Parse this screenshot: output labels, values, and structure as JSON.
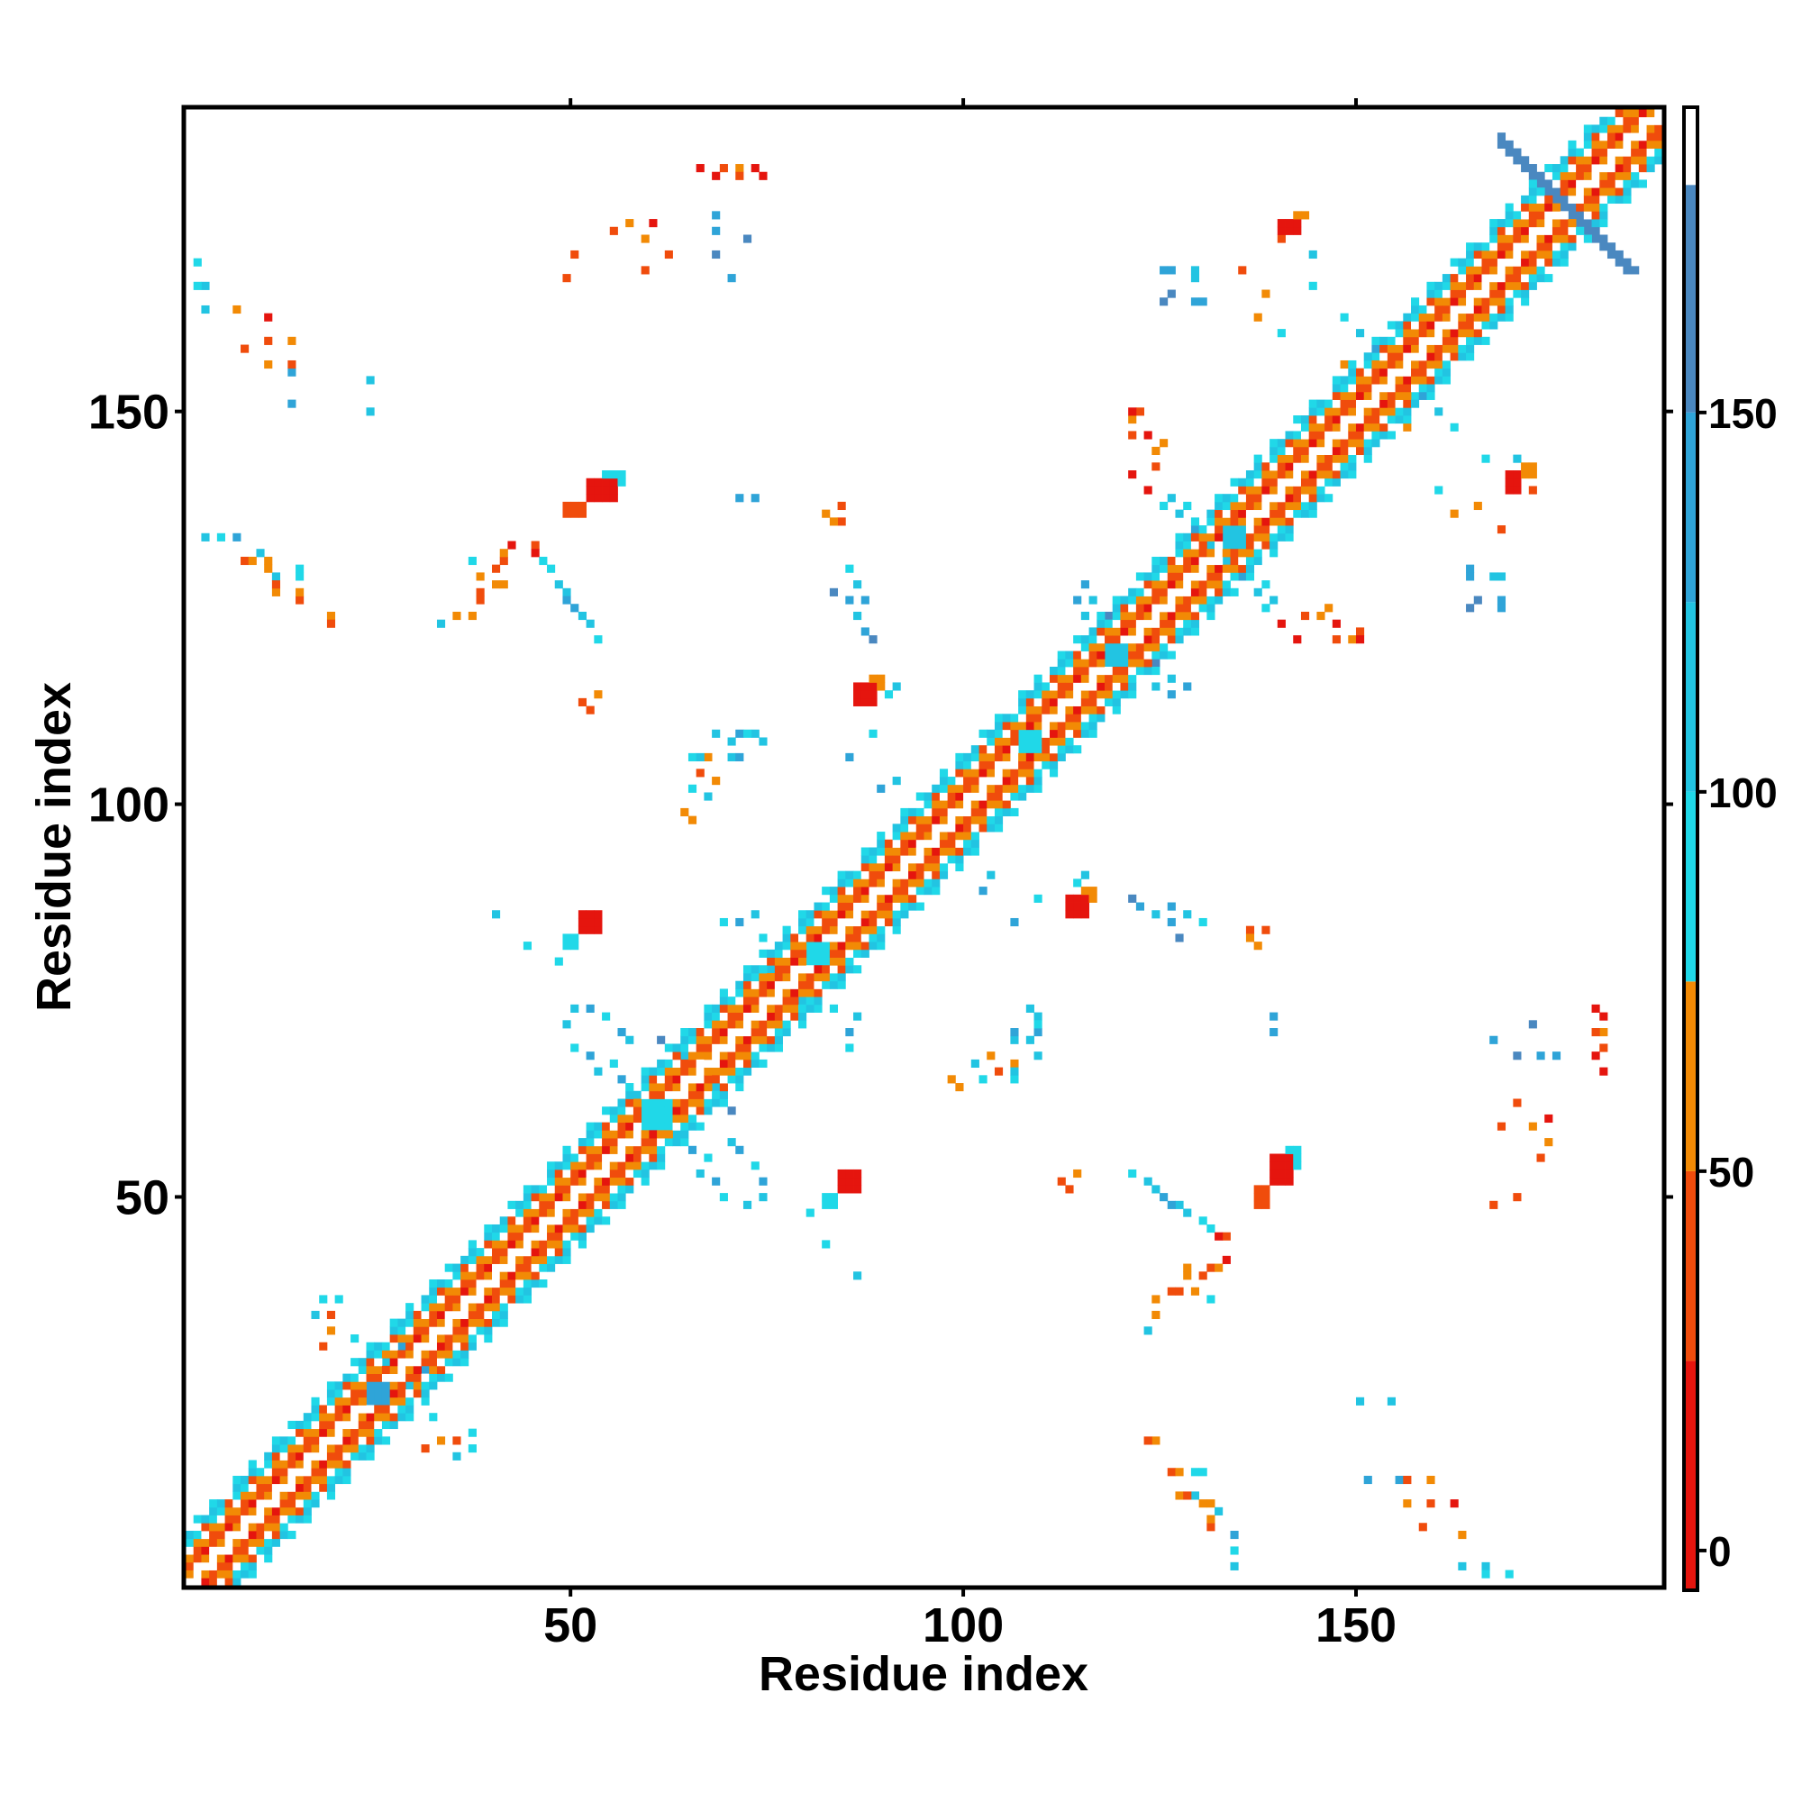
{
  "chart_data": {
    "type": "heatmap",
    "title": "",
    "xlabel": "Residue index",
    "ylabel": "Residue index",
    "xlim": [
      1,
      188
    ],
    "ylim": [
      1,
      188
    ],
    "x_ticks": [
      50,
      100,
      150
    ],
    "y_ticks": [
      50,
      100,
      150
    ],
    "colorbar": {
      "ticks": [
        0,
        50,
        100,
        150
      ],
      "range": [
        -5,
        190
      ],
      "bands": [
        {
          "from": -5,
          "to": 25,
          "color": "#e5150e"
        },
        {
          "from": 25,
          "to": 50,
          "color": "#f04c0c"
        },
        {
          "from": 50,
          "to": 75,
          "color": "#f28a05"
        },
        {
          "from": 75,
          "to": 100,
          "color": "#20d8e8"
        },
        {
          "from": 100,
          "to": 125,
          "color": "#22c4e2"
        },
        {
          "from": 125,
          "to": 150,
          "color": "#2fa4d8"
        },
        {
          "from": 150,
          "to": 180,
          "color": "#4a88c0"
        },
        {
          "from": 180,
          "to": 190,
          "color": "#ffffff"
        }
      ]
    },
    "diagonal_band": {
      "start": 1,
      "end": 188,
      "width": 7
    },
    "contact_patches": [
      {
        "x": 52,
        "y": 139,
        "dx": 4,
        "dy": 3,
        "color": "#e5150e"
      },
      {
        "x": 49,
        "y": 137,
        "dx": 3,
        "dy": 2,
        "color": "#f04c0c"
      },
      {
        "x": 54,
        "y": 141,
        "dx": 3,
        "dy": 2,
        "color": "#20d8e8"
      },
      {
        "x": 139,
        "y": 52,
        "dx": 3,
        "dy": 4,
        "color": "#e5150e"
      },
      {
        "x": 137,
        "y": 49,
        "dx": 2,
        "dy": 3,
        "color": "#f04c0c"
      },
      {
        "x": 141,
        "y": 54,
        "dx": 2,
        "dy": 3,
        "color": "#20d8e8"
      },
      {
        "x": 51,
        "y": 84,
        "dx": 3,
        "dy": 3,
        "color": "#e5150e"
      },
      {
        "x": 49,
        "y": 82,
        "dx": 2,
        "dy": 2,
        "color": "#20d8e8"
      },
      {
        "x": 84,
        "y": 51,
        "dx": 3,
        "dy": 3,
        "color": "#e5150e"
      },
      {
        "x": 82,
        "y": 49,
        "dx": 2,
        "dy": 2,
        "color": "#20d8e8"
      },
      {
        "x": 86,
        "y": 113,
        "dx": 3,
        "dy": 3,
        "color": "#e5150e"
      },
      {
        "x": 88,
        "y": 115,
        "dx": 2,
        "dy": 2,
        "color": "#f28a05"
      },
      {
        "x": 113,
        "y": 86,
        "dx": 3,
        "dy": 3,
        "color": "#e5150e"
      },
      {
        "x": 115,
        "y": 88,
        "dx": 2,
        "dy": 2,
        "color": "#f28a05"
      },
      {
        "x": 140,
        "y": 173,
        "dx": 3,
        "dy": 2,
        "color": "#e5150e"
      },
      {
        "x": 142,
        "y": 175,
        "dx": 2,
        "dy": 1,
        "color": "#f28a05"
      },
      {
        "x": 169,
        "y": 140,
        "dx": 2,
        "dy": 3,
        "color": "#e5150e"
      },
      {
        "x": 171,
        "y": 142,
        "dx": 2,
        "dy": 2,
        "color": "#f28a05"
      },
      {
        "x": 24,
        "y": 24,
        "dx": 3,
        "dy": 3,
        "color": "#2fa4d8"
      },
      {
        "x": 59,
        "y": 59,
        "dx": 4,
        "dy": 4,
        "color": "#20d8e8"
      },
      {
        "x": 80,
        "y": 80,
        "dx": 3,
        "dy": 3,
        "color": "#20d8e8"
      },
      {
        "x": 118,
        "y": 118,
        "dx": 3,
        "dy": 3,
        "color": "#22c4e2"
      },
      {
        "x": 133,
        "y": 133,
        "dx": 3,
        "dy": 3,
        "color": "#22c4e2"
      },
      {
        "x": 107,
        "y": 107,
        "dx": 3,
        "dy": 3,
        "color": "#20d8e8"
      }
    ],
    "cross_arms": [
      {
        "cx": 176,
        "cy": 176,
        "from": [
          168,
          184
        ],
        "to": [
          184,
          168
        ],
        "color": "#4a88c0"
      },
      {
        "cx": 176,
        "cy": 176,
        "from": [
          170,
          182
        ],
        "to": [
          182,
          170
        ],
        "color": "#22c4e2"
      }
    ],
    "scattered_contacts": [
      [
        66,
        181,
        "#e5150e"
      ],
      [
        69,
        181,
        "#f04c0c"
      ],
      [
        71,
        181,
        "#f28a05"
      ],
      [
        73,
        181,
        "#e5150e"
      ],
      [
        57,
        174,
        "#f28a05"
      ],
      [
        60,
        174,
        "#e5150e"
      ],
      [
        55,
        173,
        "#f04c0c"
      ],
      [
        68,
        175,
        "#2fa4d8"
      ],
      [
        72,
        172,
        "#4a88c0"
      ],
      [
        50,
        170,
        "#f04c0c"
      ],
      [
        2,
        169,
        "#20d8e8"
      ],
      [
        3,
        166,
        "#22c4e2"
      ],
      [
        7,
        163,
        "#f28a05"
      ],
      [
        11,
        162,
        "#e5150e"
      ],
      [
        11,
        159,
        "#f04c0c"
      ],
      [
        14,
        159,
        "#f28a05"
      ],
      [
        14,
        155,
        "#2fa4d8"
      ],
      [
        24,
        154,
        "#22c4e2"
      ],
      [
        3,
        134,
        "#22c4e2"
      ],
      [
        7,
        134,
        "#2fa4d8"
      ],
      [
        8,
        131,
        "#f04c0c"
      ],
      [
        11,
        131,
        "#f28a05"
      ],
      [
        12,
        129,
        "#22c4e2"
      ],
      [
        15,
        129,
        "#20d8e8"
      ],
      [
        12,
        127,
        "#f28a05"
      ],
      [
        15,
        126,
        "#f04c0c"
      ],
      [
        19,
        124,
        "#f28a05"
      ],
      [
        37,
        124,
        "#f28a05"
      ],
      [
        38,
        126,
        "#f04c0c"
      ],
      [
        40,
        128,
        "#f28a05"
      ],
      [
        41,
        131,
        "#f04c0c"
      ],
      [
        42,
        133,
        "#e5150e"
      ],
      [
        45,
        133,
        "#f04c0c"
      ],
      [
        47,
        130,
        "#20d8e8"
      ],
      [
        49,
        127,
        "#22c4e2"
      ],
      [
        50,
        125,
        "#2fa4d8"
      ],
      [
        52,
        123,
        "#22c4e2"
      ],
      [
        53,
        121,
        "#20d8e8"
      ],
      [
        51,
        113,
        "#f04c0c"
      ],
      [
        53,
        114,
        "#f28a05"
      ],
      [
        71,
        139,
        "#2fa4d8"
      ],
      [
        82,
        137,
        "#f28a05"
      ],
      [
        84,
        136,
        "#f04c0c"
      ],
      [
        83,
        127,
        "#4a88c0"
      ],
      [
        85,
        126,
        "#2fa4d8"
      ],
      [
        86,
        124,
        "#22c4e2"
      ],
      [
        87,
        122,
        "#2fa4d8"
      ],
      [
        88,
        121,
        "#4a88c0"
      ],
      [
        90,
        114,
        "#20d8e8"
      ],
      [
        91,
        115,
        "#22c4e2"
      ],
      [
        68,
        109,
        "#22c4e2"
      ],
      [
        71,
        109,
        "#2fa4d8"
      ],
      [
        73,
        109,
        "#22c4e2"
      ],
      [
        65,
        106,
        "#20d8e8"
      ],
      [
        67,
        106,
        "#f28a05"
      ],
      [
        70,
        106,
        "#22c4e2"
      ],
      [
        66,
        104,
        "#f04c0c"
      ],
      [
        65,
        102,
        "#20d8e8"
      ],
      [
        64,
        99,
        "#f28a05"
      ],
      [
        89,
        102,
        "#2fa4d8"
      ],
      [
        40,
        86,
        "#22c4e2"
      ],
      [
        48,
        80,
        "#20d8e8"
      ],
      [
        69,
        85,
        "#20d8e8"
      ],
      [
        73,
        86,
        "#22c4e2"
      ],
      [
        50,
        74,
        "#22c4e2"
      ],
      [
        52,
        74,
        "#2fa4d8"
      ],
      [
        54,
        73,
        "#20d8e8"
      ],
      [
        57,
        70,
        "#22c4e2"
      ],
      [
        56,
        71,
        "#2fa4d8"
      ],
      [
        61,
        70,
        "#4a88c0"
      ],
      [
        64,
        68,
        "#22c4e2"
      ],
      [
        66,
        68,
        "#f28a05"
      ],
      [
        79,
        75,
        "#22c4e2"
      ],
      [
        83,
        74,
        "#20d8e8"
      ],
      [
        85,
        71,
        "#2fa4d8"
      ],
      [
        63,
        58,
        "#22c4e2"
      ],
      [
        65,
        56,
        "#2fa4d8"
      ],
      [
        67,
        55,
        "#20d8e8"
      ],
      [
        66,
        53,
        "#22c4e2"
      ],
      [
        68,
        52,
        "#2fa4d8"
      ],
      [
        69,
        50,
        "#20d8e8"
      ],
      [
        72,
        49,
        "#22c4e2"
      ],
      [
        82,
        44,
        "#20d8e8"
      ],
      [
        103,
        91,
        "#22c4e2"
      ],
      [
        106,
        85,
        "#2fa4d8"
      ],
      [
        109,
        88,
        "#20d8e8"
      ],
      [
        108,
        74,
        "#22c4e2"
      ],
      [
        109,
        72,
        "#20d8e8"
      ],
      [
        106,
        71,
        "#2fa4d8"
      ],
      [
        108,
        70,
        "#22c4e2"
      ],
      [
        103,
        68,
        "#f28a05"
      ],
      [
        101,
        67,
        "#22c4e2"
      ],
      [
        104,
        66,
        "#20d8e8"
      ],
      [
        106,
        66,
        "#22c4e2"
      ],
      [
        98,
        65,
        "#f28a05"
      ],
      [
        126,
        87,
        "#2fa4d8"
      ],
      [
        128,
        86,
        "#22c4e2"
      ],
      [
        130,
        85,
        "#20d8e8"
      ],
      [
        136,
        83,
        "#f28a05"
      ],
      [
        138,
        84,
        "#f04c0c"
      ],
      [
        139,
        73,
        "#2fa4d8"
      ],
      [
        112,
        52,
        "#f04c0c"
      ],
      [
        114,
        53,
        "#f28a05"
      ],
      [
        121,
        53,
        "#20d8e8"
      ],
      [
        124,
        51,
        "#22c4e2"
      ],
      [
        126,
        49,
        "#2fa4d8"
      ],
      [
        128,
        48,
        "#22c4e2"
      ],
      [
        131,
        46,
        "#20d8e8"
      ],
      [
        132,
        45,
        "#e5150e"
      ],
      [
        128,
        41,
        "#f28a05"
      ],
      [
        130,
        40,
        "#f04c0c"
      ],
      [
        132,
        41,
        "#f28a05"
      ],
      [
        127,
        38,
        "#f04c0c"
      ],
      [
        129,
        38,
        "#f28a05"
      ],
      [
        131,
        37,
        "#20d8e8"
      ],
      [
        124,
        35,
        "#f28a05"
      ],
      [
        123,
        33,
        "#22c4e2"
      ],
      [
        123,
        19,
        "#f04c0c"
      ],
      [
        127,
        15,
        "#f28a05"
      ],
      [
        130,
        15,
        "#20d8e8"
      ],
      [
        128,
        12,
        "#f04c0c"
      ],
      [
        130,
        11,
        "#f28a05"
      ],
      [
        132,
        10,
        "#22c4e2"
      ],
      [
        131,
        9,
        "#f28a05"
      ],
      [
        134,
        7,
        "#22c4e2"
      ],
      [
        134,
        5,
        "#20d8e8"
      ],
      [
        150,
        24,
        "#22c4e2"
      ],
      [
        151,
        14,
        "#2fa4d8"
      ],
      [
        156,
        14,
        "#f04c0c"
      ],
      [
        156,
        11,
        "#f28a05"
      ],
      [
        159,
        11,
        "#e5150e"
      ],
      [
        158,
        8,
        "#f04c0c"
      ],
      [
        163,
        3,
        "#22c4e2"
      ],
      [
        166,
        2,
        "#20d8e8"
      ],
      [
        167,
        70,
        "#2fa4d8"
      ],
      [
        170,
        68,
        "#4a88c0"
      ],
      [
        173,
        68,
        "#2fa4d8"
      ],
      [
        180,
        71,
        "#f04c0c"
      ],
      [
        180,
        68,
        "#e5150e"
      ],
      [
        180,
        74,
        "#e5150e"
      ],
      [
        170,
        62,
        "#f04c0c"
      ],
      [
        172,
        59,
        "#f28a05"
      ],
      [
        168,
        59,
        "#f04c0c"
      ],
      [
        167,
        49,
        "#f04c0c"
      ],
      [
        164,
        130,
        "#2fa4d8"
      ],
      [
        167,
        129,
        "#22c4e2"
      ],
      [
        164,
        125,
        "#4a88c0"
      ],
      [
        168,
        125,
        "#2fa4d8"
      ],
      [
        162,
        137,
        "#f28a05"
      ],
      [
        160,
        140,
        "#20d8e8"
      ],
      [
        172,
        140,
        "#f04c0c"
      ],
      [
        157,
        152,
        "#20d8e8"
      ],
      [
        160,
        150,
        "#22c4e2"
      ],
      [
        156,
        148,
        "#f28a05"
      ],
      [
        148,
        162,
        "#20d8e8"
      ],
      [
        150,
        160,
        "#22c4e2"
      ],
      [
        152,
        158,
        "#2fa4d8"
      ],
      [
        143,
        124,
        "#f04c0c"
      ],
      [
        145,
        124,
        "#f28a05"
      ],
      [
        147,
        123,
        "#e5150e"
      ],
      [
        150,
        122,
        "#f04c0c"
      ],
      [
        149,
        121,
        "#f28a05"
      ],
      [
        142,
        121,
        "#e5150e"
      ],
      [
        137,
        127,
        "#22c4e2"
      ],
      [
        138,
        125,
        "#20d8e8"
      ],
      [
        140,
        123,
        "#e5150e"
      ],
      [
        121,
        150,
        "#e5150e"
      ],
      [
        121,
        147,
        "#f04c0c"
      ],
      [
        123,
        147,
        "#f28a05"
      ],
      [
        124,
        145,
        "#f04c0c"
      ],
      [
        125,
        146,
        "#f28a05"
      ],
      [
        126,
        139,
        "#22c4e2"
      ],
      [
        128,
        138,
        "#20d8e8"
      ],
      [
        129,
        135,
        "#2fa4d8"
      ],
      [
        131,
        133,
        "#22c4e2"
      ],
      [
        114,
        126,
        "#2fa4d8"
      ],
      [
        115,
        124,
        "#22c4e2"
      ],
      [
        124,
        118,
        "#4a88c0"
      ],
      [
        126,
        116,
        "#22c4e2"
      ],
      [
        128,
        115,
        "#2fa4d8"
      ],
      [
        126,
        168,
        "#2fa4d8"
      ],
      [
        129,
        168,
        "#22c4e2"
      ],
      [
        126,
        165,
        "#4a88c0"
      ],
      [
        129,
        164,
        "#2fa4d8"
      ],
      [
        135,
        168,
        "#f04c0c"
      ],
      [
        144,
        170,
        "#22c4e2"
      ],
      [
        144,
        166,
        "#20d8e8"
      ],
      [
        138,
        165,
        "#f28a05"
      ],
      [
        26,
        29,
        "#22c4e2"
      ],
      [
        28,
        31,
        "#2fa4d8"
      ],
      [
        22,
        32,
        "#20d8e8"
      ],
      [
        31,
        18,
        "#f04c0c"
      ],
      [
        33,
        19,
        "#f28a05"
      ],
      [
        35,
        19,
        "#f04c0c"
      ],
      [
        37,
        20,
        "#20d8e8"
      ],
      [
        37,
        18,
        "#20d8e8"
      ],
      [
        35,
        17,
        "#22c4e2"
      ]
    ]
  }
}
